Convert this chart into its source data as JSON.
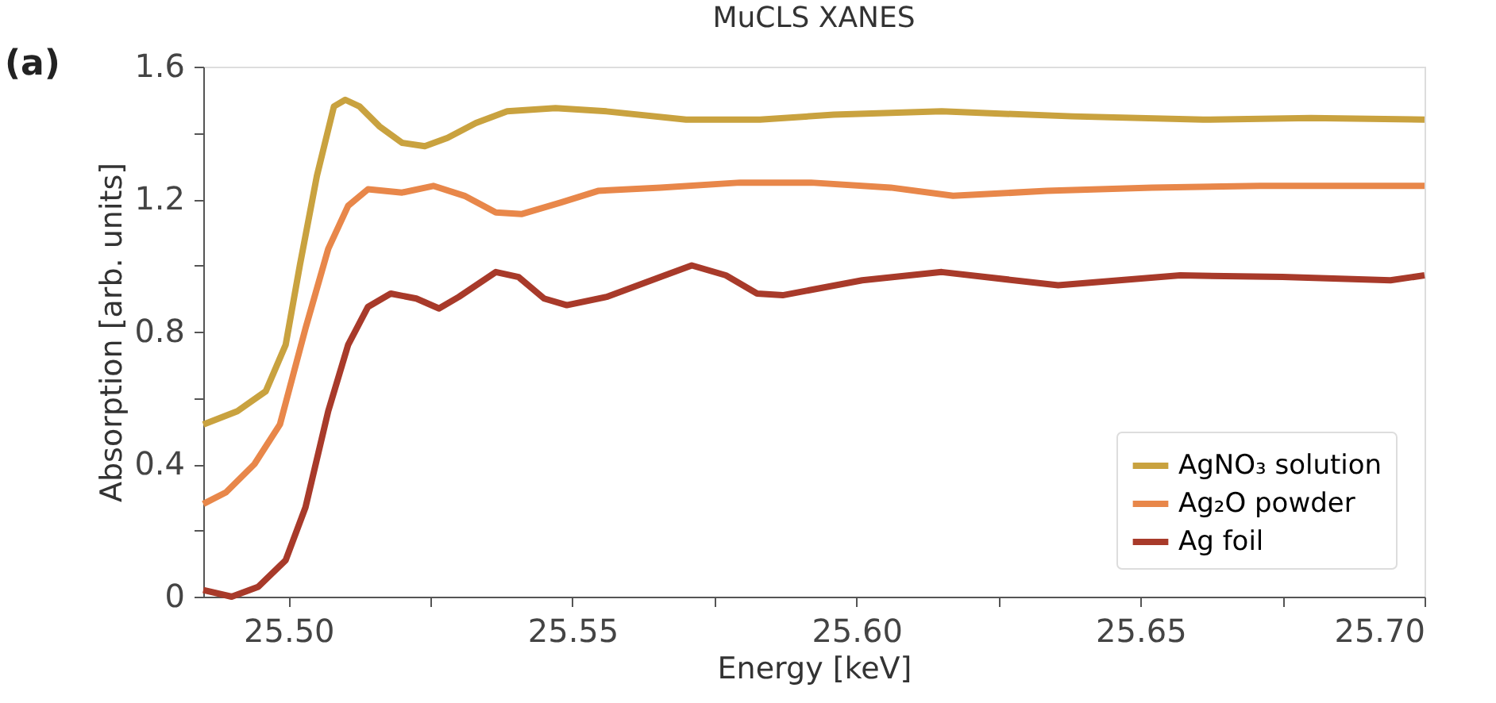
{
  "chart_data": {
    "type": "line",
    "title": "MuCLS XANES",
    "xlabel": "Energy [keV]",
    "ylabel": "Absorption [arb. units]",
    "annotations": [
      "(a)"
    ],
    "xlim": [
      25.485,
      25.7
    ],
    "xticks": [
      {
        "value": 25.5,
        "label": "25.50"
      },
      {
        "value": 25.525,
        "label": null
      },
      {
        "value": 25.55,
        "label": "25.55"
      },
      {
        "value": 25.575,
        "label": null
      },
      {
        "value": 25.6,
        "label": "25.60"
      },
      {
        "value": 25.625,
        "label": null
      },
      {
        "value": 25.65,
        "label": "25.65"
      },
      {
        "value": 25.675,
        "label": null
      },
      {
        "value": 25.7,
        "label": "25.70"
      }
    ],
    "ylim": [
      0,
      1.6
    ],
    "yticks": [
      0,
      {
        "value": 0.2,
        "label": null
      },
      0.4,
      {
        "value": 0.6,
        "label": null
      },
      0.8,
      {
        "value": 1.0,
        "label": null
      },
      1.2,
      {
        "value": 1.4,
        "label": null
      },
      1.6
    ],
    "grid": false,
    "legend": "bottom right",
    "marker": "none",
    "line_style": "solid",
    "series": [
      {
        "name": "AgNO₃ solution",
        "color": "#c9a23f",
        "x": [
          25.485,
          25.491,
          25.496,
          25.4995,
          25.502,
          25.505,
          25.508,
          25.51,
          25.5125,
          25.516,
          25.52,
          25.524,
          25.528,
          25.533,
          25.5385,
          25.547,
          25.556,
          25.57,
          25.583,
          25.596,
          25.615,
          25.638,
          25.661,
          25.68,
          25.7
        ],
        "values": [
          0.52,
          0.56,
          0.62,
          0.76,
          1.0,
          1.27,
          1.48,
          1.5,
          1.48,
          1.42,
          1.37,
          1.36,
          1.385,
          1.43,
          1.465,
          1.475,
          1.465,
          1.44,
          1.44,
          1.455,
          1.465,
          1.45,
          1.44,
          1.445,
          1.44
        ]
      },
      {
        "name": "Ag₂O powder",
        "color": "#e8874a",
        "x": [
          25.485,
          25.489,
          25.494,
          25.4985,
          25.503,
          25.507,
          25.5105,
          25.514,
          25.52,
          25.5255,
          25.531,
          25.5365,
          25.541,
          25.548,
          25.5545,
          25.5655,
          25.5795,
          25.592,
          25.606,
          25.617,
          25.6335,
          25.652,
          25.671,
          25.685,
          25.7
        ],
        "values": [
          0.28,
          0.315,
          0.4,
          0.52,
          0.81,
          1.05,
          1.18,
          1.23,
          1.22,
          1.24,
          1.21,
          1.16,
          1.155,
          1.19,
          1.225,
          1.235,
          1.25,
          1.25,
          1.235,
          1.21,
          1.225,
          1.235,
          1.24,
          1.24,
          1.24
        ]
      },
      {
        "name": "Ag foil",
        "color": "#a83a2a",
        "x": [
          25.485,
          25.49,
          25.4947,
          25.4995,
          25.503,
          25.507,
          25.5105,
          25.514,
          25.518,
          25.5225,
          25.5265,
          25.53,
          25.5365,
          25.5405,
          25.545,
          25.549,
          25.556,
          25.5655,
          25.571,
          25.577,
          25.5825,
          25.587,
          25.601,
          25.615,
          25.6355,
          25.657,
          25.675,
          25.694,
          25.7
        ],
        "values": [
          0.02,
          0.0,
          0.03,
          0.11,
          0.27,
          0.56,
          0.76,
          0.875,
          0.915,
          0.9,
          0.87,
          0.905,
          0.98,
          0.965,
          0.9,
          0.88,
          0.905,
          0.965,
          1.0,
          0.97,
          0.915,
          0.91,
          0.955,
          0.98,
          0.94,
          0.97,
          0.965,
          0.955,
          0.97
        ]
      }
    ]
  }
}
